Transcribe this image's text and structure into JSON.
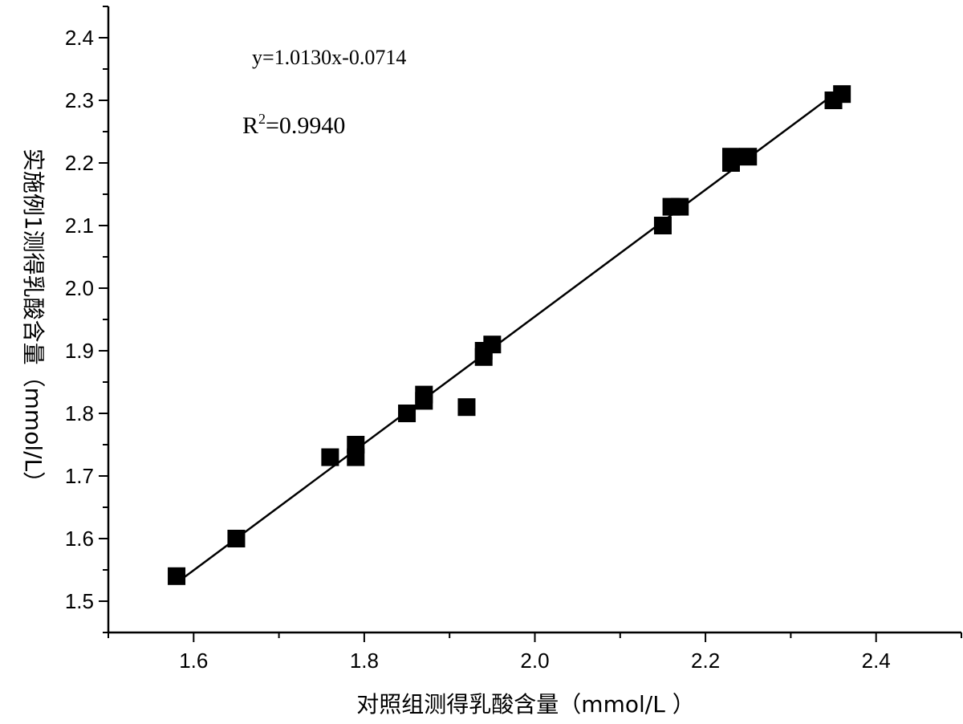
{
  "chart_data": {
    "type": "scatter",
    "xlabel": "对照组测得乳酸含量（mmol/L ）",
    "ylabel": "实施例1测得乳酸含量（mmol/L）",
    "xlim": [
      1.5,
      2.5
    ],
    "ylim": [
      1.45,
      2.45
    ],
    "xticks": [
      "1.6",
      "1.8",
      "2.0",
      "2.2",
      "2.4"
    ],
    "yticks": [
      "1.5",
      "1.6",
      "1.7",
      "1.8",
      "1.9",
      "2.0",
      "2.1",
      "2.2",
      "2.3",
      "2.4"
    ],
    "grid": false,
    "marker": "square",
    "points": [
      {
        "x": 1.58,
        "y": 1.54
      },
      {
        "x": 1.65,
        "y": 1.6
      },
      {
        "x": 1.76,
        "y": 1.73
      },
      {
        "x": 1.79,
        "y": 1.73
      },
      {
        "x": 1.79,
        "y": 1.75
      },
      {
        "x": 1.85,
        "y": 1.8
      },
      {
        "x": 1.87,
        "y": 1.82
      },
      {
        "x": 1.87,
        "y": 1.83
      },
      {
        "x": 1.92,
        "y": 1.81
      },
      {
        "x": 1.94,
        "y": 1.89
      },
      {
        "x": 1.94,
        "y": 1.9
      },
      {
        "x": 1.95,
        "y": 1.91
      },
      {
        "x": 2.15,
        "y": 2.1
      },
      {
        "x": 2.16,
        "y": 2.13
      },
      {
        "x": 2.17,
        "y": 2.13
      },
      {
        "x": 2.23,
        "y": 2.2
      },
      {
        "x": 2.23,
        "y": 2.21
      },
      {
        "x": 2.25,
        "y": 2.21
      },
      {
        "x": 2.35,
        "y": 2.3
      },
      {
        "x": 2.36,
        "y": 2.31
      }
    ],
    "fit_line": {
      "slope": 1.013,
      "intercept": -0.0714,
      "x_range": [
        1.58,
        2.36
      ]
    },
    "annotations": {
      "equation": "y=1.0130x-0.0714",
      "r2_prefix": "R",
      "r2_sup": "2",
      "r2_value": "=0.9940"
    }
  }
}
